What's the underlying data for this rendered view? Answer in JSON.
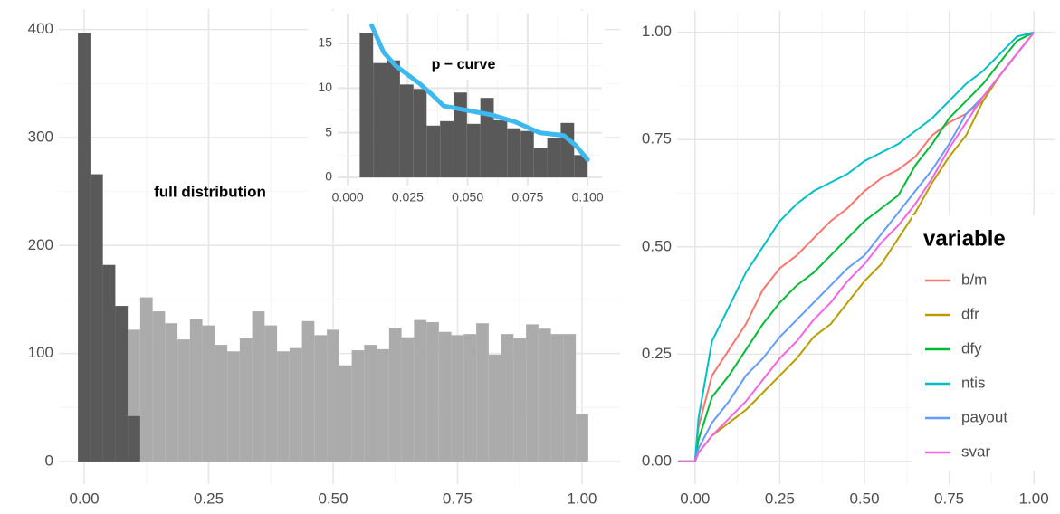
{
  "chart_data": [
    {
      "type": "histogram",
      "annotation": "full distribution",
      "series": [
        {
          "color": "#ababab",
          "bins": [
            -0.0125,
            0.0125,
            0.0375,
            0.0625,
            0.0875,
            0.1125,
            0.1375,
            0.1625,
            0.1875,
            0.2125,
            0.2375,
            0.2625,
            0.2875,
            0.3125,
            0.3375,
            0.3625,
            0.3875,
            0.4125,
            0.4375,
            0.4625,
            0.4875,
            0.5125,
            0.5375,
            0.5625,
            0.5875,
            0.6125,
            0.6375,
            0.6625,
            0.6875,
            0.7125,
            0.7375,
            0.7625,
            0.7875,
            0.8125,
            0.8375,
            0.8625,
            0.8875,
            0.9125,
            0.9375,
            0.9625,
            0.9875,
            1.0125
          ],
          "values": [
            397,
            266,
            182,
            144,
            122,
            152,
            139,
            128,
            113,
            132,
            126,
            108,
            102,
            114,
            139,
            126,
            102,
            105,
            130,
            117,
            122,
            89,
            103,
            108,
            104,
            124,
            115,
            131,
            129,
            120,
            117,
            118,
            128,
            99,
            118,
            114,
            127,
            123,
            118,
            118,
            44
          ]
        },
        {
          "color": "#595959",
          "bins": [
            -0.0125,
            0.0125,
            0.0375,
            0.0625,
            0.0875,
            0.1125
          ],
          "values": [
            397,
            266,
            182,
            144,
            42
          ]
        }
      ],
      "xlim": [
        -0.0509,
        1.0764
      ],
      "ylim": [
        -21,
        419
      ],
      "xticks": [
        {
          "value": 0,
          "label": "0.00"
        },
        {
          "value": 0.25,
          "label": "0.25"
        },
        {
          "value": 0.5,
          "label": "0.50"
        },
        {
          "value": 0.75,
          "label": "0.75"
        },
        {
          "value": 1,
          "label": "1.00"
        }
      ],
      "yticks": [
        0,
        100,
        200,
        300,
        400
      ],
      "grid": true
    },
    {
      "type": "histogram",
      "title": "p − curve",
      "series": [
        {
          "color": "#595959",
          "bins": [
            0.005,
            0.0106,
            0.0162,
            0.0218,
            0.0274,
            0.0329,
            0.0385,
            0.0441,
            0.0497,
            0.0553,
            0.0609,
            0.0665,
            0.0721,
            0.0776,
            0.0832,
            0.0888,
            0.0944,
            0.1
          ],
          "values": [
            16.2,
            12.8,
            13.1,
            10.4,
            9.9,
            5.8,
            6.3,
            9.5,
            6.0,
            8.9,
            6.4,
            5.5,
            5.2,
            3.3,
            4.4,
            6.1,
            2.5
          ]
        }
      ],
      "line": {
        "color": "#3db9ef",
        "x": [
          0.01,
          0.015,
          0.02,
          0.025,
          0.03,
          0.035,
          0.04,
          0.05,
          0.06,
          0.07,
          0.08,
          0.09,
          0.095,
          0.1
        ],
        "values": [
          17,
          14,
          12.5,
          11.5,
          10.5,
          9.3,
          8.0,
          7.5,
          7.0,
          6.2,
          5.0,
          4.7,
          3.6,
          2.0
        ]
      },
      "xlim": [
        -0.0042,
        0.106
      ],
      "ylim": [
        -0.91,
        18.34
      ],
      "xticks": [
        {
          "value": 0,
          "label": "0.000"
        },
        {
          "value": 0.025,
          "label": "0.025"
        },
        {
          "value": 0.05,
          "label": "0.050"
        },
        {
          "value": 0.075,
          "label": "0.075"
        },
        {
          "value": 0.1,
          "label": "0.100"
        }
      ],
      "yticks": [
        0,
        5,
        10,
        15
      ],
      "grid": true
    },
    {
      "type": "line",
      "legend_title": "variable",
      "x": [
        -0.05,
        0,
        0.01,
        0.05,
        0.1,
        0.15,
        0.2,
        0.25,
        0.3,
        0.35,
        0.4,
        0.45,
        0.5,
        0.55,
        0.6,
        0.65,
        0.7,
        0.75,
        0.8,
        0.85,
        0.9,
        0.95,
        1.0
      ],
      "series": [
        {
          "name": "b/m",
          "color": "#F8766D",
          "values": [
            0,
            0,
            0.08,
            0.2,
            0.26,
            0.32,
            0.4,
            0.45,
            0.48,
            0.52,
            0.56,
            0.59,
            0.63,
            0.66,
            0.68,
            0.71,
            0.76,
            0.79,
            0.81,
            0.84,
            0.9,
            0.95,
            1
          ]
        },
        {
          "name": "dfr",
          "color": "#B79F00",
          "values": [
            0,
            0,
            0.02,
            0.06,
            0.09,
            0.12,
            0.16,
            0.2,
            0.24,
            0.29,
            0.32,
            0.37,
            0.42,
            0.46,
            0.52,
            0.58,
            0.65,
            0.71,
            0.76,
            0.84,
            0.9,
            0.95,
            1
          ]
        },
        {
          "name": "dfy",
          "color": "#00BA38",
          "values": [
            0,
            0,
            0.05,
            0.15,
            0.2,
            0.26,
            0.32,
            0.37,
            0.41,
            0.44,
            0.48,
            0.52,
            0.56,
            0.59,
            0.62,
            0.69,
            0.74,
            0.8,
            0.84,
            0.88,
            0.93,
            0.98,
            1
          ]
        },
        {
          "name": "ntis",
          "color": "#00BFC4",
          "values": [
            0,
            0,
            0.1,
            0.28,
            0.36,
            0.44,
            0.5,
            0.56,
            0.6,
            0.63,
            0.65,
            0.67,
            0.7,
            0.72,
            0.74,
            0.77,
            0.8,
            0.84,
            0.88,
            0.91,
            0.95,
            0.99,
            1
          ]
        },
        {
          "name": "payout",
          "color": "#619CFF",
          "values": [
            0,
            0,
            0.03,
            0.09,
            0.14,
            0.2,
            0.24,
            0.29,
            0.33,
            0.37,
            0.41,
            0.45,
            0.48,
            0.53,
            0.58,
            0.63,
            0.68,
            0.74,
            0.81,
            0.85,
            0.9,
            0.95,
            1
          ]
        },
        {
          "name": "svar",
          "color": "#F564E3",
          "values": [
            0,
            0,
            0.02,
            0.06,
            0.1,
            0.14,
            0.19,
            0.24,
            0.28,
            0.33,
            0.37,
            0.42,
            0.46,
            0.51,
            0.55,
            0.6,
            0.66,
            0.73,
            0.79,
            0.85,
            0.9,
            0.95,
            1
          ]
        }
      ],
      "xlim": [
        -0.053,
        1.061
      ],
      "ylim": [
        -0.053,
        1.05
      ],
      "xticks": [
        {
          "value": 0,
          "label": "0.00"
        },
        {
          "value": 0.25,
          "label": "0.25"
        },
        {
          "value": 0.5,
          "label": "0.50"
        },
        {
          "value": 0.75,
          "label": "0.75"
        },
        {
          "value": 1,
          "label": "1.00"
        }
      ],
      "yticks": [
        {
          "value": 0,
          "label": "0.00"
        },
        {
          "value": 0.25,
          "label": "0.25"
        },
        {
          "value": 0.5,
          "label": "0.50"
        },
        {
          "value": 0.75,
          "label": "0.75"
        },
        {
          "value": 1,
          "label": "1.00"
        }
      ],
      "grid": true
    }
  ]
}
